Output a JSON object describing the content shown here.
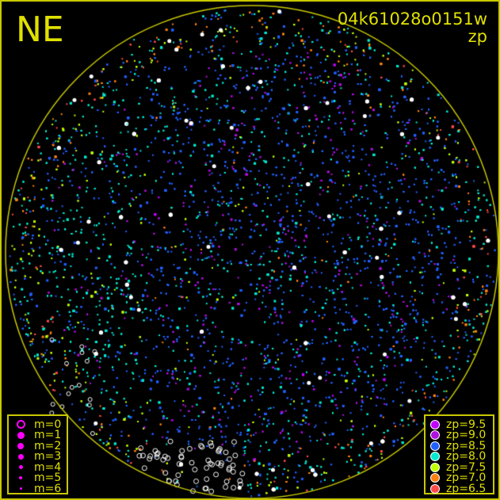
{
  "header": {
    "direction": "NE",
    "frame_id": "04k61028o0151w",
    "mode": "zp"
  },
  "colors": {
    "frame": "#c8c800",
    "text": "#e0e000",
    "magnitude_symbol": "#ff00ff"
  },
  "magnitude_legend": [
    {
      "label": "m=0",
      "symbol": "open-circle"
    },
    {
      "label": "m=1",
      "symbol": "filled-circle"
    },
    {
      "label": "m=2",
      "symbol": "filled-circle"
    },
    {
      "label": "m=3",
      "symbol": "filled-circle"
    },
    {
      "label": "m=4",
      "symbol": "filled-circle"
    },
    {
      "label": "m=5",
      "symbol": "filled-circle"
    },
    {
      "label": "m=6",
      "symbol": "filled-circle"
    }
  ],
  "zp_legend": [
    {
      "label": "zp=9.5",
      "color": "#c000ff"
    },
    {
      "label": "zp=9.0",
      "color": "#b010e0"
    },
    {
      "label": "zp=8.5",
      "color": "#2060ff"
    },
    {
      "label": "zp=8.0",
      "color": "#00e8d0"
    },
    {
      "label": "zp=7.5",
      "color": "#c0ff00"
    },
    {
      "label": "zp=7.0",
      "color": "#ff8010"
    },
    {
      "label": "zp=6.5",
      "color": "#ff4848"
    }
  ]
}
